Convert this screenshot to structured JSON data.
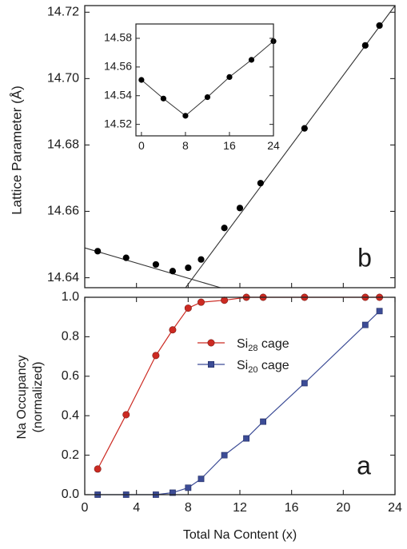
{
  "colors": {
    "axis": "#222222",
    "black_series": "#000000",
    "red_series": "#cc2a22",
    "blue_series": "#3c4c96"
  },
  "chart_data": [
    {
      "id": "b",
      "type": "scatter",
      "panel_label": "b",
      "ylabel": "Lattice Parameter (Å)",
      "xlim": [
        0,
        24
      ],
      "ylim": [
        14.637,
        14.722
      ],
      "yticks": [
        "14.64",
        "14.66",
        "14.68",
        "14.70",
        "14.72"
      ],
      "series": [
        {
          "x": [
            1,
            3.2,
            5.5,
            6.8,
            8,
            9,
            10.8,
            12,
            13.6,
            17,
            21.7,
            22.8
          ],
          "y": [
            14.648,
            14.646,
            14.644,
            14.642,
            14.643,
            14.6455,
            14.655,
            14.661,
            14.6685,
            14.685,
            14.71,
            14.716
          ],
          "marker": "circle",
          "color": "#000000"
        }
      ],
      "fit_lines": [
        {
          "from": [
            0,
            14.649
          ],
          "to": [
            10.5,
            14.6365
          ]
        },
        {
          "from": [
            7.8,
            14.637
          ],
          "to": [
            24,
            14.722
          ]
        }
      ]
    },
    {
      "id": "inset",
      "type": "line",
      "xlim": [
        -1,
        24
      ],
      "ylim": [
        14.512,
        14.59
      ],
      "xticks": [
        "0",
        "8",
        "16",
        "24"
      ],
      "yticks": [
        "14.52",
        "14.54",
        "14.56",
        "14.58"
      ],
      "series": [
        {
          "x": [
            0,
            4,
            8,
            12,
            16,
            20,
            24
          ],
          "y": [
            14.551,
            14.538,
            14.526,
            14.539,
            14.553,
            14.565,
            14.578
          ],
          "marker": "circle",
          "color": "#000000"
        }
      ]
    },
    {
      "id": "a",
      "type": "line",
      "panel_label": "a",
      "xlabel": "Total Na Content (x)",
      "ylabel_line1": "Na Occupancy",
      "ylabel_line2": "(normalized)",
      "xlim": [
        0,
        24
      ],
      "ylim": [
        0,
        1.0
      ],
      "xticks": [
        "0",
        "4",
        "8",
        "12",
        "16",
        "20",
        "24"
      ],
      "yticks": [
        "0.0",
        "0.2",
        "0.4",
        "0.6",
        "0.8",
        "1.0"
      ],
      "legend_position": "top-center",
      "series": [
        {
          "name_main": "Si",
          "name_sub": "28",
          "name_rest": " cage",
          "marker": "circle",
          "color": "#cc2a22",
          "x": [
            1,
            3.2,
            5.5,
            6.8,
            8,
            9,
            10.8,
            12.5,
            13.8,
            17,
            21.7,
            22.8
          ],
          "y": [
            0.13,
            0.405,
            0.705,
            0.835,
            0.945,
            0.975,
            0.985,
            1.0,
            1.0,
            1.0,
            1.0,
            1.0
          ]
        },
        {
          "name_main": "Si",
          "name_sub": "20",
          "name_rest": " cage",
          "marker": "square",
          "color": "#3c4c96",
          "x": [
            1,
            3.2,
            5.5,
            6.8,
            8,
            9,
            10.8,
            12.5,
            13.8,
            17,
            21.7,
            22.8
          ],
          "y": [
            0.0,
            0.0,
            0.0,
            0.01,
            0.035,
            0.08,
            0.2,
            0.285,
            0.37,
            0.565,
            0.86,
            0.93
          ]
        }
      ]
    }
  ]
}
